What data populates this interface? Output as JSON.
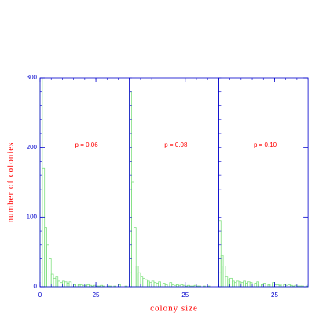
{
  "chart_data": [
    {
      "type": "histogram",
      "annotation": "p = 0.06",
      "ylabel": "number of colonies",
      "bins": [
        0,
        1,
        2,
        3,
        4,
        5,
        6,
        7,
        8,
        9,
        10,
        11,
        12,
        13,
        14,
        15,
        16,
        17,
        18,
        19,
        20,
        21,
        22,
        23,
        24,
        25,
        26,
        27,
        28,
        29,
        30,
        31,
        32,
        33,
        34,
        35,
        36,
        37,
        38,
        39,
        40
      ],
      "values": [
        300,
        170,
        85,
        60,
        40,
        18,
        12,
        15,
        8,
        6,
        8,
        7,
        5,
        7,
        4,
        3,
        4,
        3,
        3,
        2,
        2,
        3,
        2,
        1,
        2,
        1,
        1,
        2,
        1,
        0,
        1,
        1,
        0,
        1,
        0,
        3,
        0,
        0,
        1,
        0
      ],
      "color": "#80e080",
      "xlim": [
        0,
        40
      ],
      "ylim": [
        0,
        300
      ],
      "xticks": [
        0,
        25
      ],
      "yticks": [
        0,
        100,
        200,
        300
      ]
    },
    {
      "type": "histogram",
      "annotation": "p = 0.08",
      "xlabel": "colony size",
      "bins": [
        0,
        1,
        2,
        3,
        4,
        5,
        6,
        7,
        8,
        9,
        10,
        11,
        12,
        13,
        14,
        15,
        16,
        17,
        18,
        19,
        20,
        21,
        22,
        23,
        24,
        25,
        26,
        27,
        28,
        29,
        30,
        31,
        32,
        33,
        34,
        35,
        36,
        37,
        38,
        39,
        40
      ],
      "values": [
        280,
        150,
        85,
        30,
        20,
        15,
        12,
        10,
        8,
        6,
        8,
        6,
        5,
        7,
        4,
        5,
        3,
        4,
        6,
        3,
        2,
        3,
        2,
        3,
        2,
        1,
        2,
        1,
        1,
        2,
        1,
        1,
        0,
        1,
        0,
        1,
        0,
        0,
        0,
        0
      ],
      "color": "#80e080",
      "xlim": [
        0,
        40
      ],
      "ylim": [
        0,
        300
      ],
      "xticks": [
        25
      ]
    },
    {
      "type": "histogram",
      "annotation": "p = 0.10",
      "bins": [
        0,
        1,
        2,
        3,
        4,
        5,
        6,
        7,
        8,
        9,
        10,
        11,
        12,
        13,
        14,
        15,
        16,
        17,
        18,
        19,
        20,
        21,
        22,
        23,
        24,
        25,
        26,
        27,
        28,
        29,
        30,
        31,
        32,
        33,
        34,
        35,
        36,
        37,
        38,
        39,
        40
      ],
      "values": [
        95,
        45,
        30,
        15,
        10,
        12,
        8,
        6,
        8,
        7,
        6,
        8,
        5,
        7,
        6,
        4,
        5,
        7,
        4,
        3,
        5,
        4,
        3,
        4,
        6,
        3,
        3,
        2,
        4,
        3,
        2,
        3,
        2,
        1,
        2,
        1,
        1,
        1,
        0,
        1
      ],
      "color": "#80e080",
      "xlim": [
        0,
        40
      ],
      "ylim": [
        0,
        300
      ],
      "xticks": [
        25
      ]
    }
  ]
}
